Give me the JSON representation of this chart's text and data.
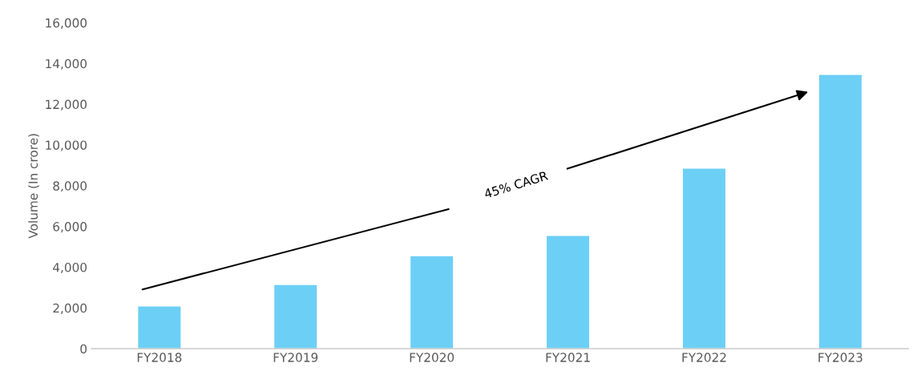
{
  "chart_data": {
    "type": "bar",
    "ylabel": "Volume (In crore)",
    "categories": [
      "FY2018",
      "FY2019",
      "FY2020",
      "FY2021",
      "FY2022",
      "FY2023"
    ],
    "values": [
      2100,
      3150,
      4570,
      5560,
      8860,
      13470
    ],
    "color": "#6ccff6",
    "ylim": [
      0,
      16000
    ],
    "yticks": [
      {
        "value": 0,
        "label": "0"
      },
      {
        "value": 2000,
        "label": "2,000"
      },
      {
        "value": 4000,
        "label": "4,000"
      },
      {
        "value": 6000,
        "label": "6,000"
      },
      {
        "value": 8000,
        "label": "8,000"
      },
      {
        "value": 10000,
        "label": "10,000"
      },
      {
        "value": 12000,
        "label": "12,000"
      },
      {
        "value": 14000,
        "label": "14,000"
      },
      {
        "value": 16000,
        "label": "16,000"
      }
    ],
    "grid": false,
    "legend": false,
    "annotations": [
      "45% CAGR"
    ]
  }
}
